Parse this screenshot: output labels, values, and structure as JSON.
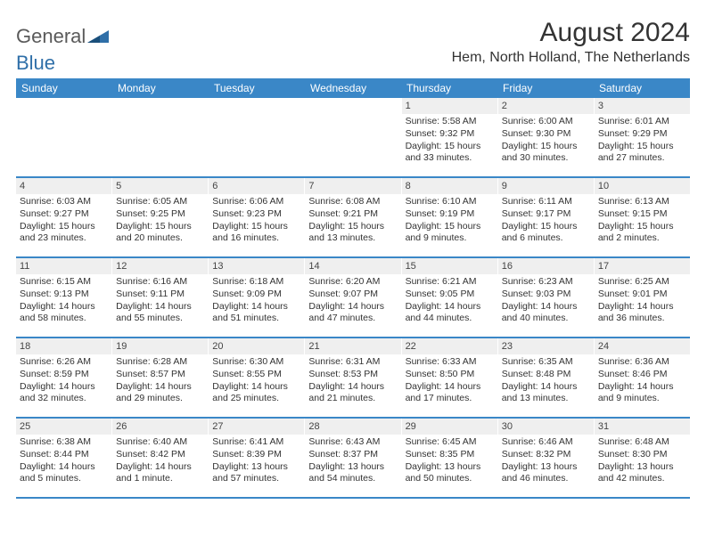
{
  "logo": {
    "text1": "General",
    "text2": "Blue"
  },
  "title": "August 2024",
  "location": "Hem, North Holland, The Netherlands",
  "colors": {
    "header_bg": "#3a87c7",
    "header_text": "#ffffff",
    "daynum_bg": "#efefef",
    "divider": "#3a87c7",
    "logo_blue": "#2f6fa8",
    "text": "#333333"
  },
  "weekdays": [
    "Sunday",
    "Monday",
    "Tuesday",
    "Wednesday",
    "Thursday",
    "Friday",
    "Saturday"
  ],
  "weeks": [
    [
      {
        "n": "",
        "lines": []
      },
      {
        "n": "",
        "lines": []
      },
      {
        "n": "",
        "lines": []
      },
      {
        "n": "",
        "lines": []
      },
      {
        "n": "1",
        "lines": [
          "Sunrise: 5:58 AM",
          "Sunset: 9:32 PM",
          "Daylight: 15 hours",
          "and 33 minutes."
        ]
      },
      {
        "n": "2",
        "lines": [
          "Sunrise: 6:00 AM",
          "Sunset: 9:30 PM",
          "Daylight: 15 hours",
          "and 30 minutes."
        ]
      },
      {
        "n": "3",
        "lines": [
          "Sunrise: 6:01 AM",
          "Sunset: 9:29 PM",
          "Daylight: 15 hours",
          "and 27 minutes."
        ]
      }
    ],
    [
      {
        "n": "4",
        "lines": [
          "Sunrise: 6:03 AM",
          "Sunset: 9:27 PM",
          "Daylight: 15 hours",
          "and 23 minutes."
        ]
      },
      {
        "n": "5",
        "lines": [
          "Sunrise: 6:05 AM",
          "Sunset: 9:25 PM",
          "Daylight: 15 hours",
          "and 20 minutes."
        ]
      },
      {
        "n": "6",
        "lines": [
          "Sunrise: 6:06 AM",
          "Sunset: 9:23 PM",
          "Daylight: 15 hours",
          "and 16 minutes."
        ]
      },
      {
        "n": "7",
        "lines": [
          "Sunrise: 6:08 AM",
          "Sunset: 9:21 PM",
          "Daylight: 15 hours",
          "and 13 minutes."
        ]
      },
      {
        "n": "8",
        "lines": [
          "Sunrise: 6:10 AM",
          "Sunset: 9:19 PM",
          "Daylight: 15 hours",
          "and 9 minutes."
        ]
      },
      {
        "n": "9",
        "lines": [
          "Sunrise: 6:11 AM",
          "Sunset: 9:17 PM",
          "Daylight: 15 hours",
          "and 6 minutes."
        ]
      },
      {
        "n": "10",
        "lines": [
          "Sunrise: 6:13 AM",
          "Sunset: 9:15 PM",
          "Daylight: 15 hours",
          "and 2 minutes."
        ]
      }
    ],
    [
      {
        "n": "11",
        "lines": [
          "Sunrise: 6:15 AM",
          "Sunset: 9:13 PM",
          "Daylight: 14 hours",
          "and 58 minutes."
        ]
      },
      {
        "n": "12",
        "lines": [
          "Sunrise: 6:16 AM",
          "Sunset: 9:11 PM",
          "Daylight: 14 hours",
          "and 55 minutes."
        ]
      },
      {
        "n": "13",
        "lines": [
          "Sunrise: 6:18 AM",
          "Sunset: 9:09 PM",
          "Daylight: 14 hours",
          "and 51 minutes."
        ]
      },
      {
        "n": "14",
        "lines": [
          "Sunrise: 6:20 AM",
          "Sunset: 9:07 PM",
          "Daylight: 14 hours",
          "and 47 minutes."
        ]
      },
      {
        "n": "15",
        "lines": [
          "Sunrise: 6:21 AM",
          "Sunset: 9:05 PM",
          "Daylight: 14 hours",
          "and 44 minutes."
        ]
      },
      {
        "n": "16",
        "lines": [
          "Sunrise: 6:23 AM",
          "Sunset: 9:03 PM",
          "Daylight: 14 hours",
          "and 40 minutes."
        ]
      },
      {
        "n": "17",
        "lines": [
          "Sunrise: 6:25 AM",
          "Sunset: 9:01 PM",
          "Daylight: 14 hours",
          "and 36 minutes."
        ]
      }
    ],
    [
      {
        "n": "18",
        "lines": [
          "Sunrise: 6:26 AM",
          "Sunset: 8:59 PM",
          "Daylight: 14 hours",
          "and 32 minutes."
        ]
      },
      {
        "n": "19",
        "lines": [
          "Sunrise: 6:28 AM",
          "Sunset: 8:57 PM",
          "Daylight: 14 hours",
          "and 29 minutes."
        ]
      },
      {
        "n": "20",
        "lines": [
          "Sunrise: 6:30 AM",
          "Sunset: 8:55 PM",
          "Daylight: 14 hours",
          "and 25 minutes."
        ]
      },
      {
        "n": "21",
        "lines": [
          "Sunrise: 6:31 AM",
          "Sunset: 8:53 PM",
          "Daylight: 14 hours",
          "and 21 minutes."
        ]
      },
      {
        "n": "22",
        "lines": [
          "Sunrise: 6:33 AM",
          "Sunset: 8:50 PM",
          "Daylight: 14 hours",
          "and 17 minutes."
        ]
      },
      {
        "n": "23",
        "lines": [
          "Sunrise: 6:35 AM",
          "Sunset: 8:48 PM",
          "Daylight: 14 hours",
          "and 13 minutes."
        ]
      },
      {
        "n": "24",
        "lines": [
          "Sunrise: 6:36 AM",
          "Sunset: 8:46 PM",
          "Daylight: 14 hours",
          "and 9 minutes."
        ]
      }
    ],
    [
      {
        "n": "25",
        "lines": [
          "Sunrise: 6:38 AM",
          "Sunset: 8:44 PM",
          "Daylight: 14 hours",
          "and 5 minutes."
        ]
      },
      {
        "n": "26",
        "lines": [
          "Sunrise: 6:40 AM",
          "Sunset: 8:42 PM",
          "Daylight: 14 hours",
          "and 1 minute."
        ]
      },
      {
        "n": "27",
        "lines": [
          "Sunrise: 6:41 AM",
          "Sunset: 8:39 PM",
          "Daylight: 13 hours",
          "and 57 minutes."
        ]
      },
      {
        "n": "28",
        "lines": [
          "Sunrise: 6:43 AM",
          "Sunset: 8:37 PM",
          "Daylight: 13 hours",
          "and 54 minutes."
        ]
      },
      {
        "n": "29",
        "lines": [
          "Sunrise: 6:45 AM",
          "Sunset: 8:35 PM",
          "Daylight: 13 hours",
          "and 50 minutes."
        ]
      },
      {
        "n": "30",
        "lines": [
          "Sunrise: 6:46 AM",
          "Sunset: 8:32 PM",
          "Daylight: 13 hours",
          "and 46 minutes."
        ]
      },
      {
        "n": "31",
        "lines": [
          "Sunrise: 6:48 AM",
          "Sunset: 8:30 PM",
          "Daylight: 13 hours",
          "and 42 minutes."
        ]
      }
    ]
  ]
}
